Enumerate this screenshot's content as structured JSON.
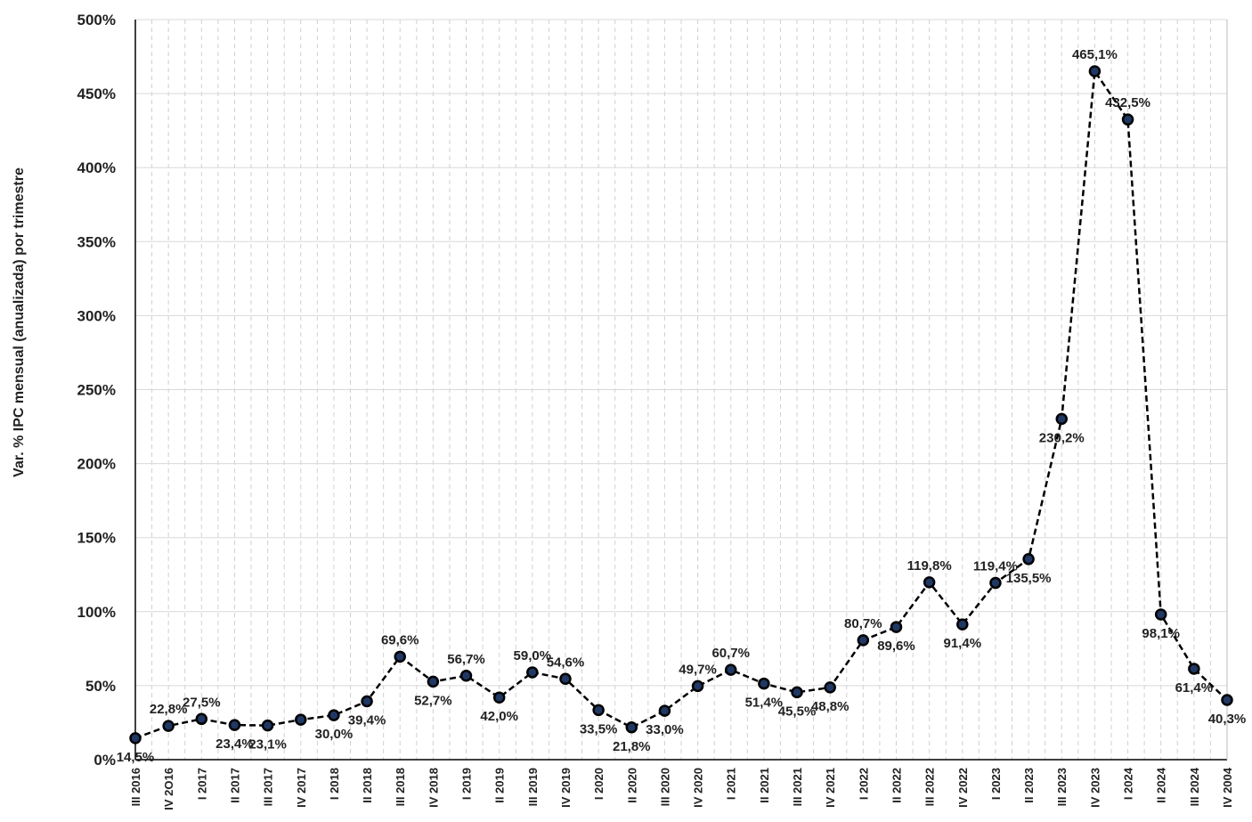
{
  "chart_data": {
    "type": "line",
    "y_label": "Var. % IPC mensual (anualizada) por trimestre",
    "categories": [
      "III 2016",
      "IV 2O16",
      "I 2017",
      "II 2017",
      "III 2017",
      "IV 2017",
      "I 2018",
      "II 2018",
      "III 2018",
      "IV 2018",
      "I 2019",
      "II 2019",
      "III 2019",
      "IV 2019",
      "I 2020",
      "II 2020",
      "III 2020",
      "IV 2020",
      "I 2021",
      "II 2021",
      "III 2021",
      "IV 2021",
      "I 2022",
      "II 2022",
      "III 2022",
      "IV 2022",
      "I 2023",
      "II 2023",
      "III 2023",
      "IV 2023",
      "I 2024",
      "II 2024",
      "III 2024",
      "IV 2004"
    ],
    "values": [
      14.5,
      22.8,
      27.5,
      23.4,
      23.1,
      27,
      30.0,
      39.4,
      69.6,
      52.7,
      56.7,
      42.0,
      59.0,
      54.6,
      33.5,
      21.8,
      33.0,
      49.7,
      60.7,
      51.4,
      45.5,
      48.8,
      80.7,
      89.6,
      119.8,
      91.4,
      119.4,
      135.5,
      230.2,
      465.1,
      432.5,
      98.1,
      61.4,
      40.3
    ],
    "value_labels": [
      "14,5%",
      "22,8%",
      "27,5%",
      "23,4%",
      "23,1%",
      null,
      "30,0%",
      "39,4%",
      "69,6%",
      "52,7%",
      "56,7%",
      "42,0%",
      "59,0%",
      "54,6%",
      "33,5%",
      "21,8%",
      "33,0%",
      "49,7%",
      "60,7%",
      "51,4%",
      "45,5%",
      "48,8%",
      "80,7%",
      "89,6%",
      "119,8%",
      "91,4%",
      "119,4%",
      "135,5%",
      "230,2%",
      "465,1%",
      "432,5%",
      "98,1%",
      "61,4%",
      "40,3%"
    ],
    "color": "#000000",
    "marker_color": "#1f3864",
    "ylim": [
      0,
      500
    ],
    "yticks": [
      {
        "value": 0,
        "label": "0%"
      },
      {
        "value": 50,
        "label": "50%"
      },
      {
        "value": 100,
        "label": "100%"
      },
      {
        "value": 150,
        "label": "150%"
      },
      {
        "value": 200,
        "label": "200%"
      },
      {
        "value": 250,
        "label": "250%"
      },
      {
        "value": 300,
        "label": "300%"
      },
      {
        "value": 350,
        "label": "350%"
      },
      {
        "value": 400,
        "label": "400%"
      },
      {
        "value": 450,
        "label": "450%"
      },
      {
        "value": 500,
        "label": "500%"
      }
    ],
    "grid": true
  }
}
